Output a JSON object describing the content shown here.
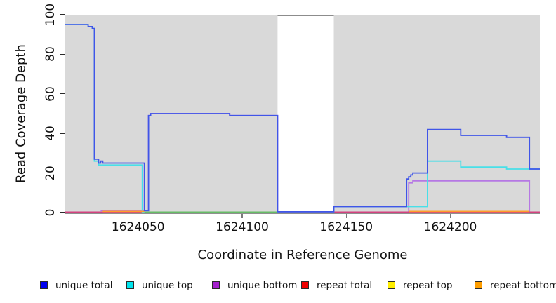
{
  "chart_data": {
    "type": "line",
    "title": "",
    "xlabel": "Coordinate in Reference Genome",
    "ylabel": "Read Coverage Depth",
    "xlim": [
      1624015,
      1624243
    ],
    "ylim": [
      0,
      100
    ],
    "x_ticks": [
      1624050,
      1624100,
      1624150,
      1624200
    ],
    "y_ticks": [
      0,
      20,
      40,
      60,
      80,
      100
    ],
    "grid": false,
    "panel_background": "#d9d9d9",
    "mask_band": {
      "x0": 1624117,
      "x1": 1624144,
      "color": "#ffffff",
      "cap_color": "#707070",
      "cap_value": 100
    },
    "legend_position": "bottom",
    "legend": [
      {
        "label": "unique total",
        "swatch": "#0000f2"
      },
      {
        "label": "unique top",
        "swatch": "#00e5ee"
      },
      {
        "label": "unique bottom",
        "swatch": "#a520ce"
      },
      {
        "label": "repeat total",
        "swatch": "#ee0000"
      },
      {
        "label": "repeat top",
        "swatch": "#ffee00"
      },
      {
        "label": "repeat bottom",
        "swatch": "#ff9e00"
      }
    ],
    "series": [
      {
        "name": "unique bottom",
        "line_color": "#b678e4",
        "points": [
          [
            1624032,
            1
          ],
          [
            1624055,
            49
          ],
          [
            1624056,
            50
          ],
          [
            1624094,
            49
          ],
          [
            1624117,
            0.2
          ],
          [
            1624180,
            15
          ],
          [
            1624182,
            16
          ],
          [
            1624238,
            0.2
          ],
          [
            1624243,
            0.2
          ]
        ]
      },
      {
        "name": "repeat total",
        "line_color": "#d2417e",
        "points": [
          [
            1624015,
            0.2
          ],
          [
            1624243,
            0.2
          ]
        ]
      },
      {
        "name": "unique top",
        "line_color": "#48dfe8",
        "points": [
          [
            1624015,
            95
          ],
          [
            1624026,
            94
          ],
          [
            1624028,
            93
          ],
          [
            1624029,
            26
          ],
          [
            1624031,
            24
          ],
          [
            1624052,
            0.2
          ],
          [
            1624117,
            0.4
          ],
          [
            1624144,
            3
          ],
          [
            1624189,
            26
          ],
          [
            1624205,
            23
          ],
          [
            1624227,
            22
          ],
          [
            1624243,
            22
          ]
        ]
      },
      {
        "name": "repeat top",
        "line_color": "#66bb66",
        "points": [
          [
            1624053,
            0.2
          ],
          [
            1624117,
            0.2
          ]
        ]
      },
      {
        "name": "repeat bottom",
        "line_color": "#ff9d2c",
        "points": [
          [
            1624033,
            0.55
          ],
          [
            1624053,
            0.55
          ],
          null,
          [
            1624180,
            0.55
          ],
          [
            1624238,
            0.55
          ]
        ]
      },
      {
        "name": "unique total",
        "line_color": "#4055e8",
        "points": [
          [
            1624015,
            95
          ],
          [
            1624026,
            94
          ],
          [
            1624028,
            93
          ],
          [
            1624029,
            27
          ],
          [
            1624031,
            25
          ],
          [
            1624032,
            26
          ],
          [
            1624033,
            25
          ],
          [
            1624053,
            1
          ],
          [
            1624055,
            49
          ],
          [
            1624056,
            50
          ],
          [
            1624094,
            49
          ],
          [
            1624117,
            0.4
          ],
          [
            1624144,
            3
          ],
          [
            1624179,
            17
          ],
          [
            1624180,
            18
          ],
          [
            1624181,
            19
          ],
          [
            1624182,
            20
          ],
          [
            1624189,
            42
          ],
          [
            1624205,
            39
          ],
          [
            1624227,
            38
          ],
          [
            1624238,
            22
          ],
          [
            1624243,
            22
          ]
        ]
      }
    ]
  }
}
